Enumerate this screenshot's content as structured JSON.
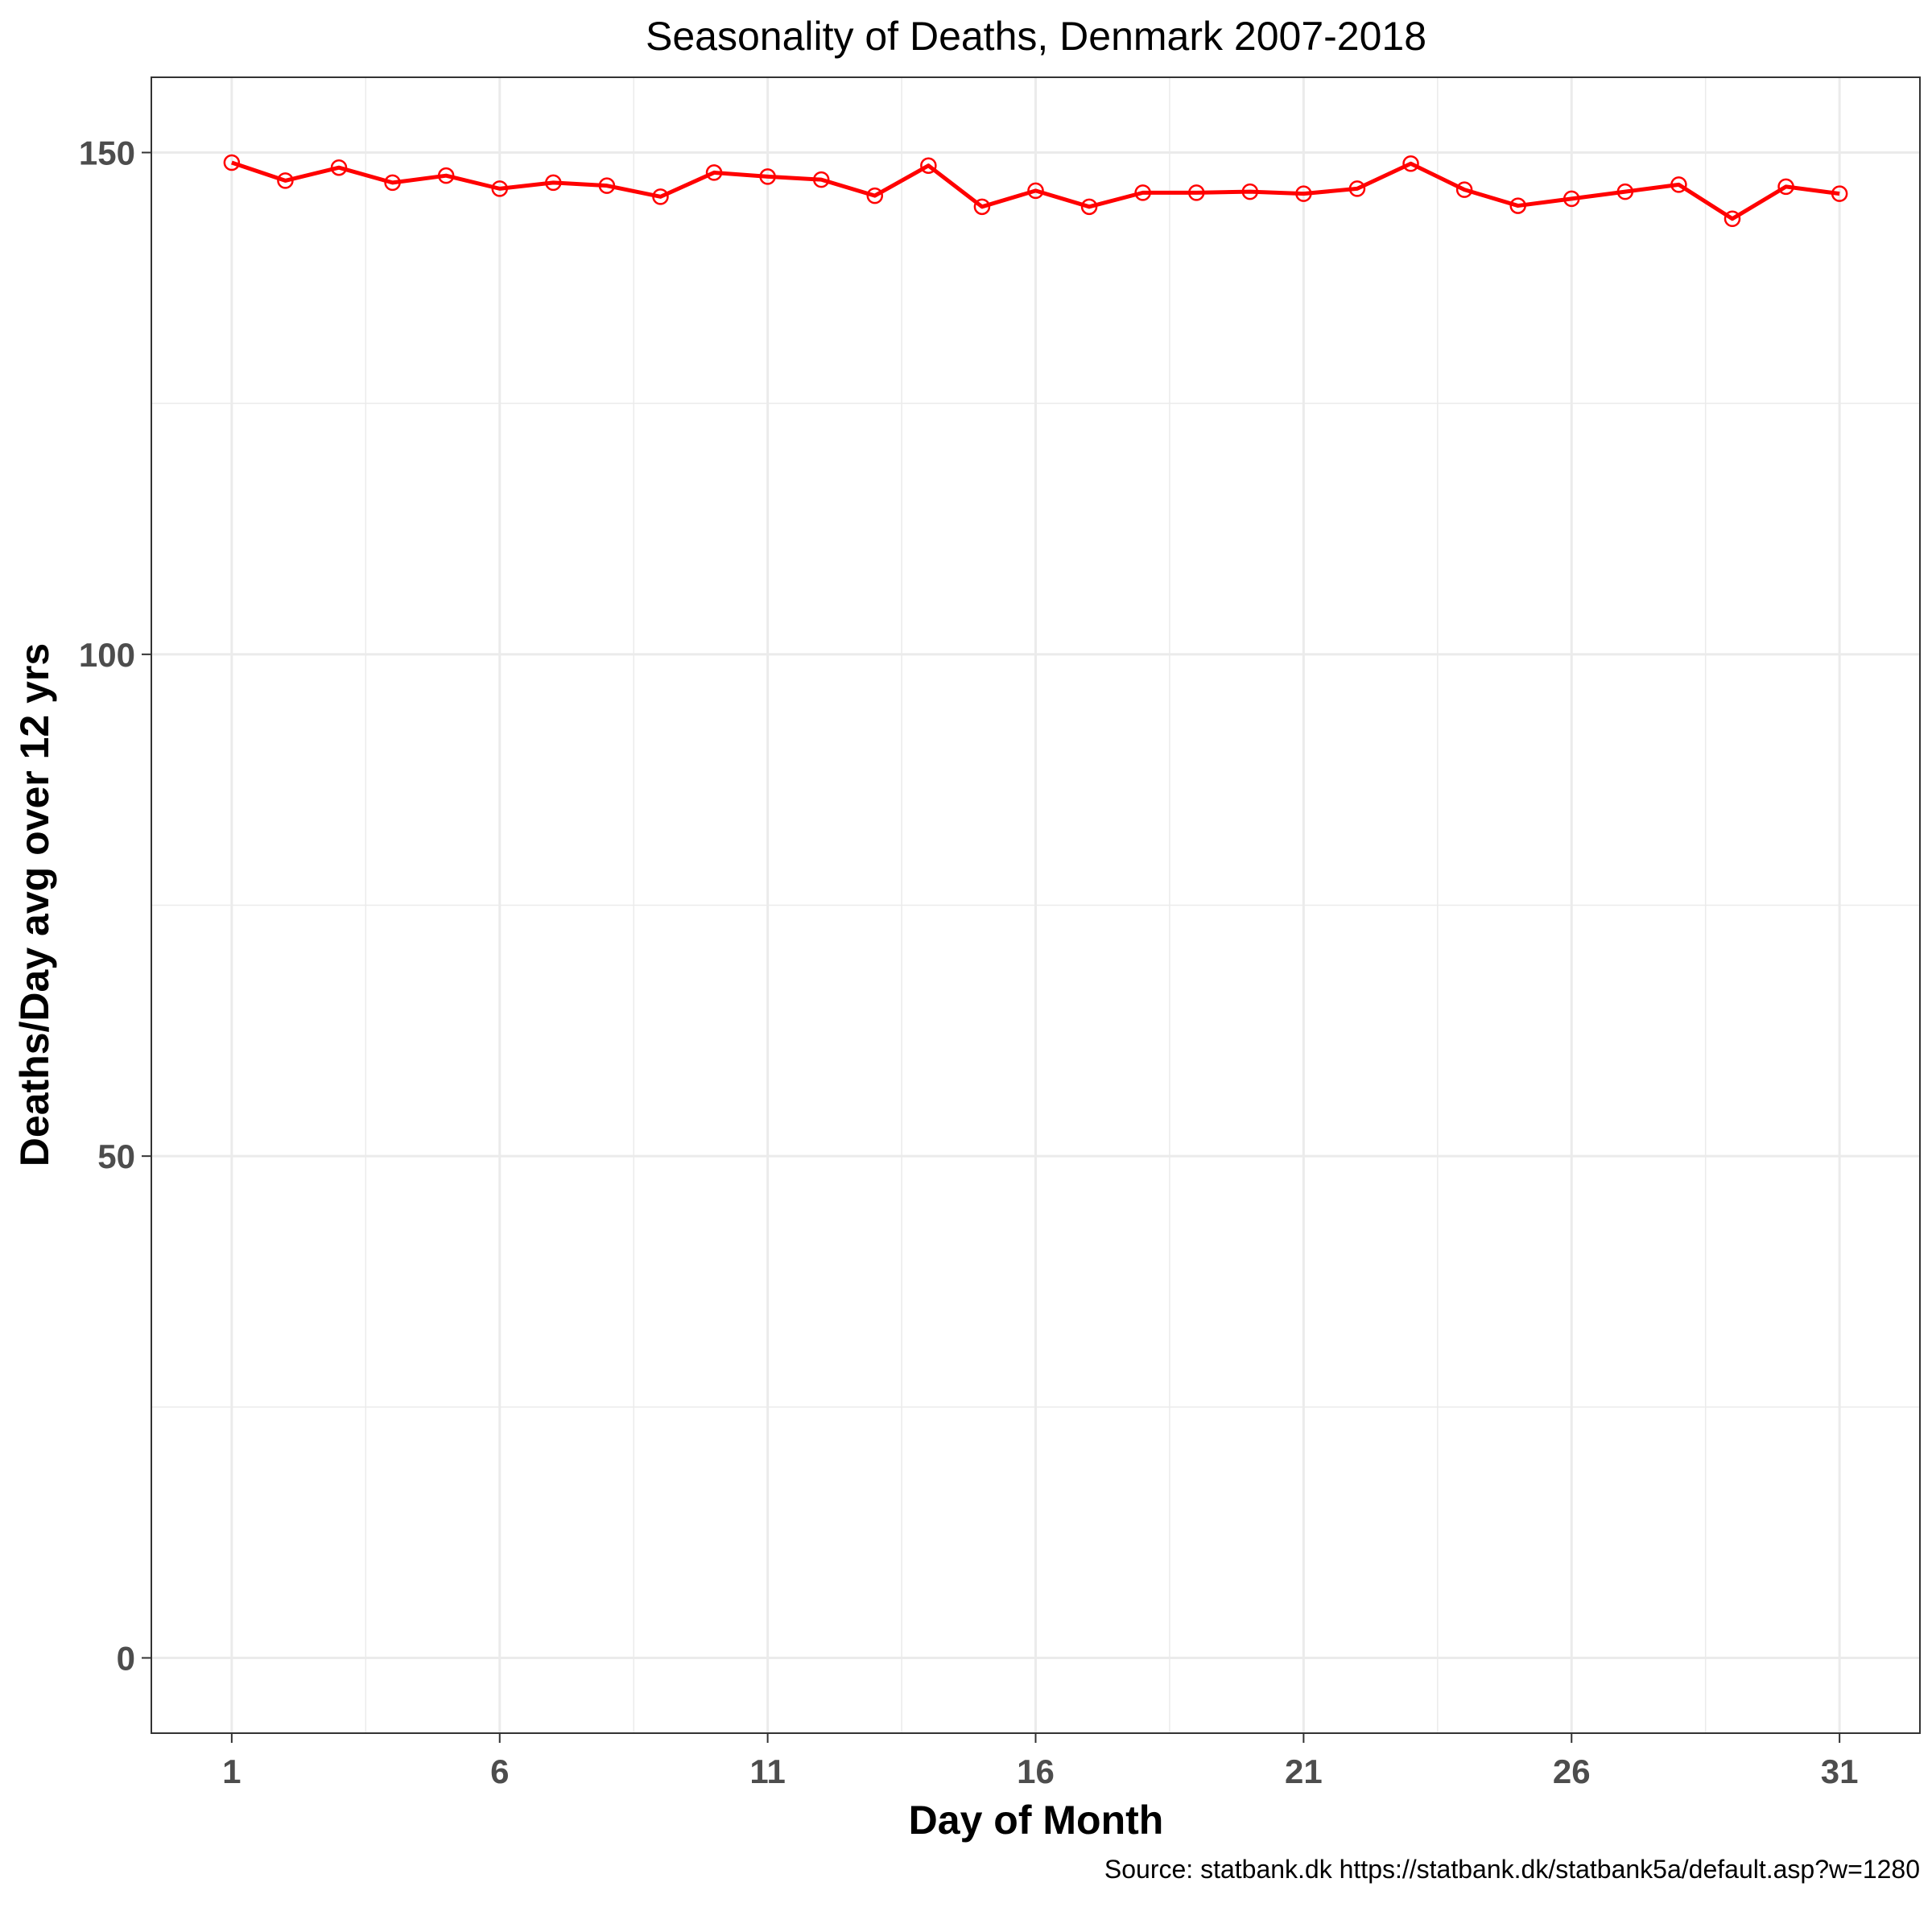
{
  "chart_data": {
    "type": "line",
    "title": "Seasonality of Deaths, Denmark 2007-2018",
    "xlabel": "Day of Month",
    "ylabel": "Deaths/Day avg over 12 yrs",
    "caption": "Source: statbank.dk https://statbank.dk/statbank5a/default.asp?w=1280",
    "xlim": [
      -0.5,
      32.5
    ],
    "ylim": [
      -7.5,
      157.5
    ],
    "x_ticks": [
      1,
      6,
      11,
      16,
      21,
      26,
      31
    ],
    "y_ticks": [
      0,
      50,
      100,
      150
    ],
    "grid": true,
    "legend": "none",
    "series_color": "#ff0000",
    "x": [
      1,
      2,
      3,
      4,
      5,
      6,
      7,
      8,
      9,
      10,
      11,
      12,
      13,
      14,
      15,
      16,
      17,
      18,
      19,
      20,
      21,
      22,
      23,
      24,
      25,
      26,
      27,
      28,
      29,
      30,
      31
    ],
    "values": [
      149.0,
      147.2,
      148.5,
      147.0,
      147.7,
      146.4,
      147.0,
      146.7,
      145.6,
      148.0,
      147.6,
      147.3,
      145.7,
      148.7,
      144.6,
      146.2,
      144.6,
      146.0,
      146.0,
      146.1,
      145.9,
      146.4,
      148.9,
      146.3,
      144.7,
      145.4,
      146.1,
      146.8,
      143.4,
      146.6,
      145.9
    ]
  }
}
